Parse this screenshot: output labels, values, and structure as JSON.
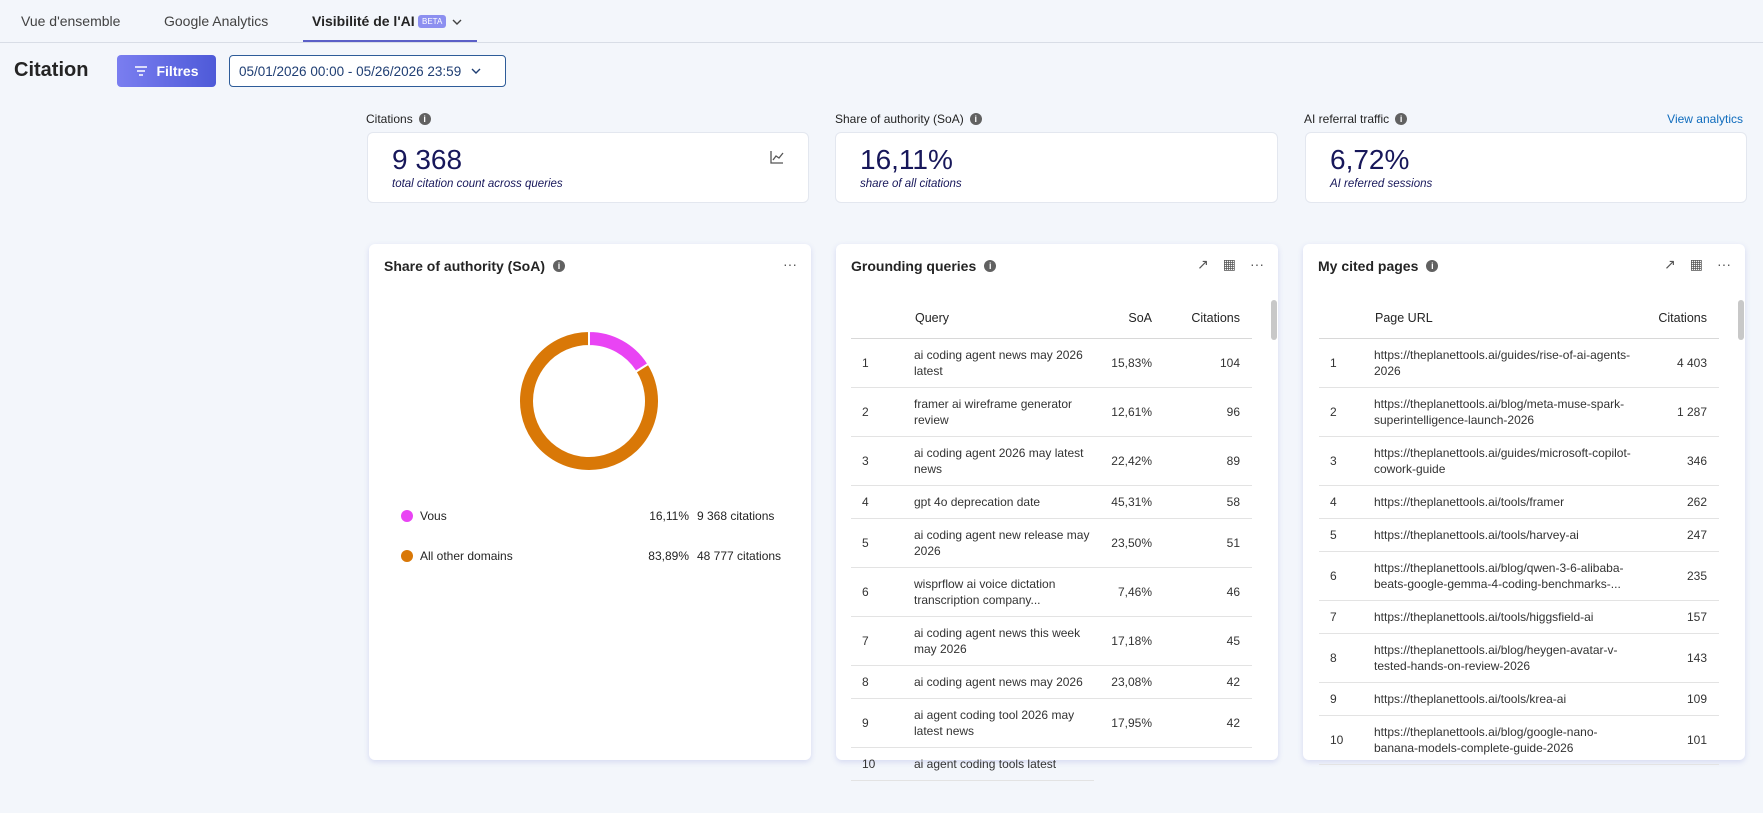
{
  "tabs": [
    "Vue d'ensemble",
    "Google Analytics",
    "Visibilité de l'AI"
  ],
  "beta_badge": "BETA",
  "header": {
    "title": "Citation",
    "filter_button": "Filtres",
    "date_range": "05/01/2026 00:00 - 05/26/2026 23:59"
  },
  "kpis": [
    {
      "label": "Citations",
      "value": "9 368",
      "caption": "total citation count across queries"
    },
    {
      "label": "Share of authority (SoA)",
      "value": "16,11%",
      "caption": "share of all citations"
    },
    {
      "label": "AI referral traffic",
      "value": "6,72%",
      "caption": "AI referred sessions"
    }
  ],
  "view_analytics": "View analytics",
  "chart_data": {
    "type": "donut",
    "title": "Share of authority (SoA)",
    "categories": [
      "Vous",
      "All other domains"
    ],
    "values": [
      16.11,
      83.89
    ],
    "value_labels": [
      "16,11%",
      "83,89%"
    ],
    "citation_labels": [
      "9 368 citations",
      "48 777 citations"
    ],
    "colors": [
      "#e944f4",
      "#d97807"
    ]
  },
  "grounding_queries": {
    "title": "Grounding queries",
    "columns": [
      "Query",
      "SoA",
      "Citations"
    ],
    "rows": [
      [
        "1",
        "ai coding agent news may 2026 latest",
        "15,83%",
        "104"
      ],
      [
        "2",
        "framer ai wireframe generator review",
        "12,61%",
        "96"
      ],
      [
        "3",
        "ai coding agent 2026 may latest news",
        "22,42%",
        "89"
      ],
      [
        "4",
        "gpt 4o deprecation date",
        "45,31%",
        "58"
      ],
      [
        "5",
        "ai coding agent new release may 2026",
        "23,50%",
        "51"
      ],
      [
        "6",
        "wisprflow ai voice dictation transcription company...",
        "7,46%",
        "46"
      ],
      [
        "7",
        "ai coding agent news this week may 2026",
        "17,18%",
        "45"
      ],
      [
        "8",
        "ai coding agent news may 2026",
        "23,08%",
        "42"
      ],
      [
        "9",
        "ai agent coding tool 2026 may latest news",
        "17,95%",
        "42"
      ],
      [
        "10",
        "ai agent coding tools latest"
      ]
    ]
  },
  "cited_pages": {
    "title": "My cited pages",
    "columns": [
      "Page URL",
      "Citations"
    ],
    "rows": [
      [
        "1",
        "https://theplanettools.ai/guides/rise-of-ai-agents-2026",
        "4 403"
      ],
      [
        "2",
        "https://theplanettools.ai/blog/meta-muse-spark-superintelligence-launch-2026",
        "1 287"
      ],
      [
        "3",
        "https://theplanettools.ai/guides/microsoft-copilot-cowork-guide",
        "346"
      ],
      [
        "4",
        "https://theplanettools.ai/tools/framer",
        "262"
      ],
      [
        "5",
        "https://theplanettools.ai/tools/harvey-ai",
        "247"
      ],
      [
        "6",
        "https://theplanettools.ai/blog/qwen-3-6-alibaba-beats-google-gemma-4-coding-benchmarks-...",
        "235"
      ],
      [
        "7",
        "https://theplanettools.ai/tools/higgsfield-ai",
        "157"
      ],
      [
        "8",
        "https://theplanettools.ai/blog/heygen-avatar-v-tested-hands-on-review-2026",
        "143"
      ],
      [
        "9",
        "https://theplanettools.ai/tools/krea-ai",
        "109"
      ],
      [
        "10",
        "https://theplanettools.ai/blog/google-nano-banana-models-complete-guide-2026",
        "101"
      ]
    ]
  }
}
